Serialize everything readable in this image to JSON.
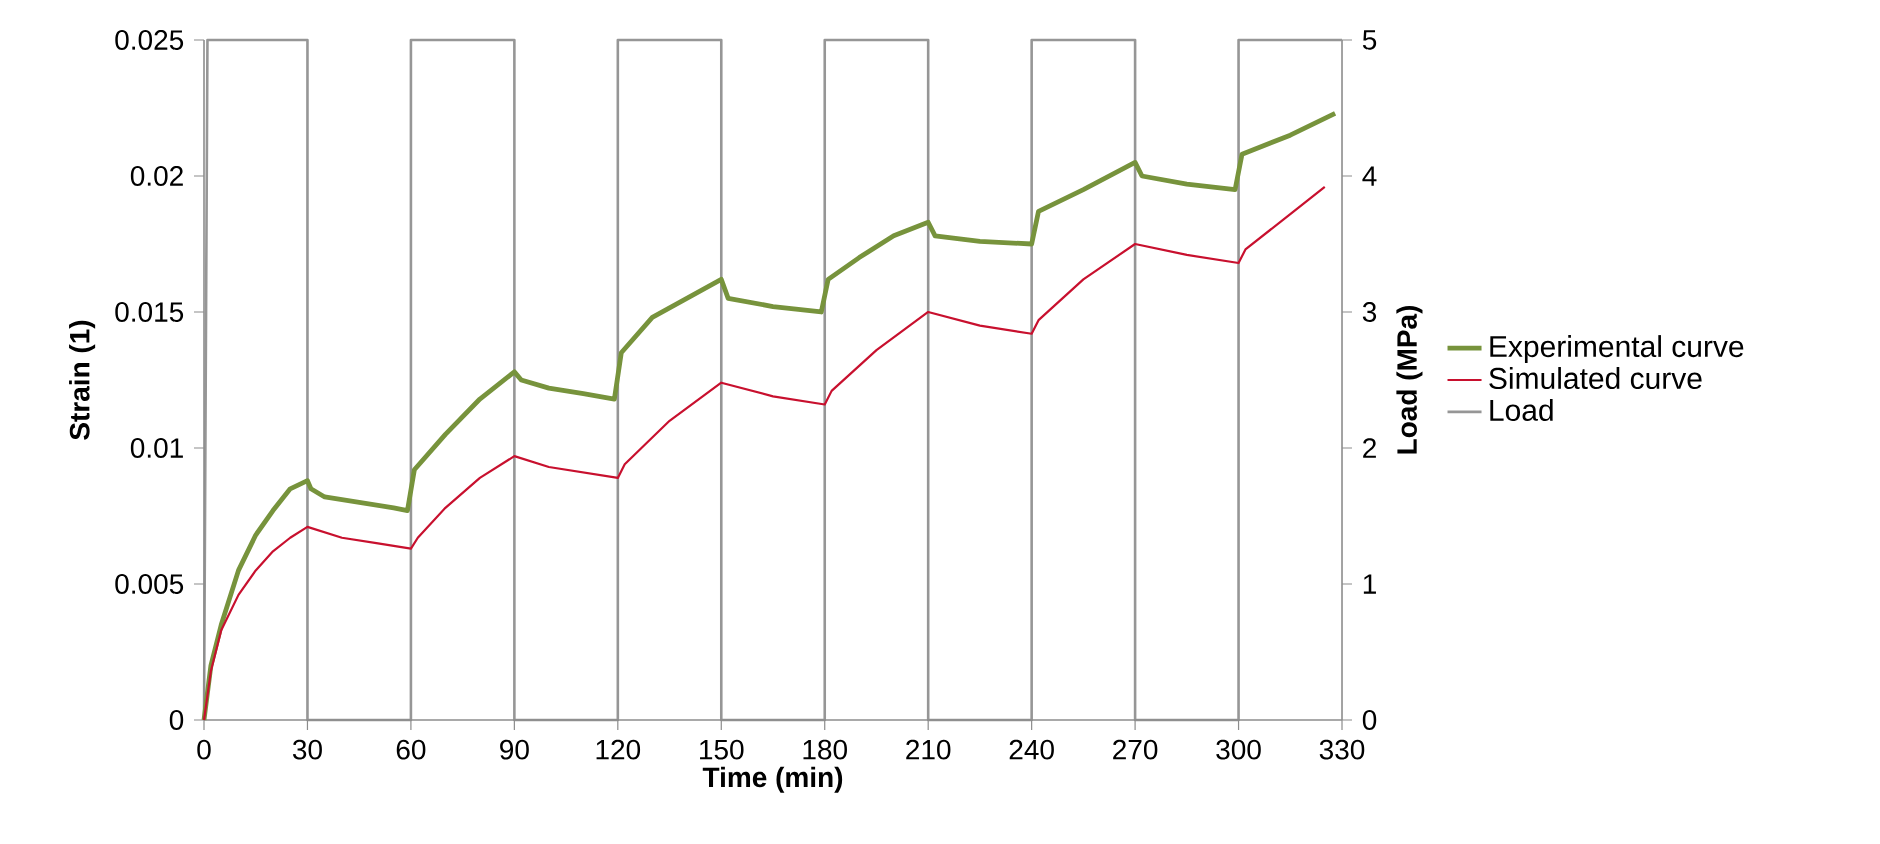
{
  "chart_data": {
    "type": "line",
    "xlabel": "Time (min)",
    "ylabel": "Strain (1)",
    "y2label": "Load (MPa)",
    "xlim": [
      0,
      330
    ],
    "xticks": [
      0,
      30,
      60,
      90,
      120,
      150,
      180,
      210,
      240,
      270,
      300,
      330
    ],
    "ylim": [
      0,
      0.025
    ],
    "yticks": [
      0,
      0.005,
      0.01,
      0.015,
      0.02,
      0.025
    ],
    "y2lim": [
      0,
      5
    ],
    "y2ticks": [
      0,
      1,
      2,
      3,
      4,
      5
    ],
    "legend": "right",
    "grid": false,
    "series": [
      {
        "name": "Experimental curve",
        "color": "#77933c",
        "x": [
          0,
          2,
          5,
          10,
          15,
          20,
          25,
          30,
          31,
          35,
          45,
          55,
          59,
          61,
          70,
          80,
          90,
          92,
          100,
          110,
          119,
          121,
          130,
          140,
          150,
          152,
          165,
          179,
          181,
          190,
          200,
          210,
          212,
          225,
          240,
          242,
          255,
          270,
          272,
          285,
          299,
          301,
          315,
          328
        ],
        "values": [
          0,
          0.002,
          0.0035,
          0.0055,
          0.0068,
          0.0077,
          0.0085,
          0.0088,
          0.0085,
          0.0082,
          0.008,
          0.0078,
          0.0077,
          0.0092,
          0.0105,
          0.0118,
          0.0128,
          0.0125,
          0.0122,
          0.012,
          0.0118,
          0.0135,
          0.0148,
          0.0155,
          0.0162,
          0.0155,
          0.0152,
          0.015,
          0.0162,
          0.017,
          0.0178,
          0.0183,
          0.0178,
          0.0176,
          0.0175,
          0.0187,
          0.0195,
          0.0205,
          0.02,
          0.0197,
          0.0195,
          0.0208,
          0.0215,
          0.0223
        ]
      },
      {
        "name": "Simulated curve",
        "color": "#c8102e",
        "x": [
          0,
          2,
          5,
          10,
          15,
          20,
          25,
          30,
          40,
          50,
          60,
          62,
          70,
          80,
          90,
          100,
          110,
          120,
          122,
          135,
          150,
          165,
          180,
          182,
          195,
          210,
          225,
          240,
          242,
          255,
          270,
          285,
          300,
          302,
          315,
          325
        ],
        "values": [
          0,
          0.0018,
          0.0033,
          0.0046,
          0.0055,
          0.0062,
          0.0067,
          0.0071,
          0.0067,
          0.0065,
          0.0063,
          0.0067,
          0.0078,
          0.0089,
          0.0097,
          0.0093,
          0.0091,
          0.0089,
          0.0094,
          0.011,
          0.0124,
          0.0119,
          0.0116,
          0.0121,
          0.0136,
          0.015,
          0.0145,
          0.0142,
          0.0147,
          0.0162,
          0.0175,
          0.0171,
          0.0168,
          0.0173,
          0.0186,
          0.0196
        ]
      },
      {
        "name": "Load",
        "color": "#969696",
        "axis": "y2",
        "x": [
          0,
          1,
          30,
          30,
          60,
          60,
          90,
          90,
          120,
          120,
          150,
          150,
          180,
          180,
          210,
          210,
          240,
          240,
          270,
          270,
          300,
          300,
          330
        ],
        "values": [
          0,
          5,
          5,
          0,
          0,
          5,
          5,
          0,
          0,
          5,
          5,
          0,
          0,
          5,
          5,
          0,
          0,
          5,
          5,
          0,
          0,
          5,
          5
        ]
      }
    ]
  }
}
